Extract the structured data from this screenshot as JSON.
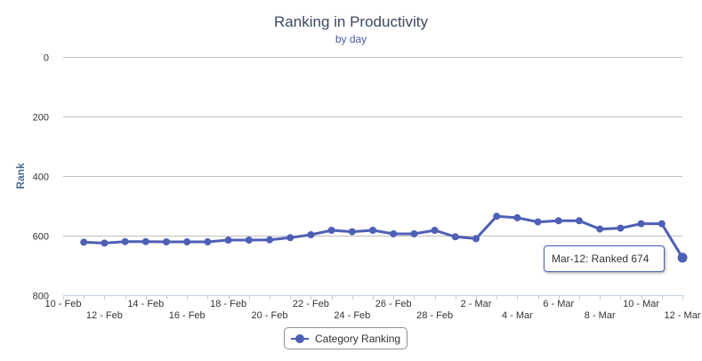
{
  "header": {
    "title": "Ranking in Productivity",
    "subtitle": "by day"
  },
  "legend": {
    "label": "Category Ranking"
  },
  "tooltip": {
    "text": "Mar-12: Ranked 674"
  },
  "colors": {
    "series": "#4e5fb6",
    "axis_title": "#4a6b8a",
    "grid": "#c0c0c0",
    "tick_label": "#333333"
  },
  "chart_data": {
    "type": "line",
    "title": "Ranking in Productivity",
    "subtitle": "by day",
    "ylabel": "Rank",
    "xlabel": "",
    "y_reversed": true,
    "ylim": [
      0,
      800
    ],
    "yticks": [
      "0",
      "200",
      "400",
      "600",
      "800"
    ],
    "grid": true,
    "legend_position": "bottom-center",
    "xticks": [
      "10 - Feb",
      "12 - Feb",
      "14 - Feb",
      "16 - Feb",
      "18 - Feb",
      "20 - Feb",
      "22 - Feb",
      "24 - Feb",
      "26 - Feb",
      "28 - Feb",
      "2 - Mar",
      "4 - Mar",
      "6 - Mar",
      "8 - Mar",
      "10 - Mar",
      "12 - Mar"
    ],
    "series": [
      {
        "name": "Category Ranking",
        "x": [
          "11 - Feb",
          "12 - Feb",
          "13 - Feb",
          "14 - Feb",
          "15 - Feb",
          "16 - Feb",
          "17 - Feb",
          "18 - Feb",
          "19 - Feb",
          "20 - Feb",
          "21 - Feb",
          "22 - Feb",
          "23 - Feb",
          "24 - Feb",
          "25 - Feb",
          "26 - Feb",
          "27 - Feb",
          "28 - Feb",
          "1 - Mar",
          "2 - Mar",
          "3 - Mar",
          "4 - Mar",
          "5 - Mar",
          "6 - Mar",
          "7 - Mar",
          "8 - Mar",
          "9 - Mar",
          "10 - Mar",
          "11 - Mar",
          "12 - Mar"
        ],
        "values": [
          622,
          625,
          620,
          620,
          621,
          621,
          621,
          615,
          615,
          614,
          607,
          597,
          582,
          587,
          582,
          594,
          594,
          582,
          604,
          610,
          535,
          540,
          554,
          550,
          550,
          578,
          575,
          560,
          560,
          674
        ]
      }
    ]
  }
}
